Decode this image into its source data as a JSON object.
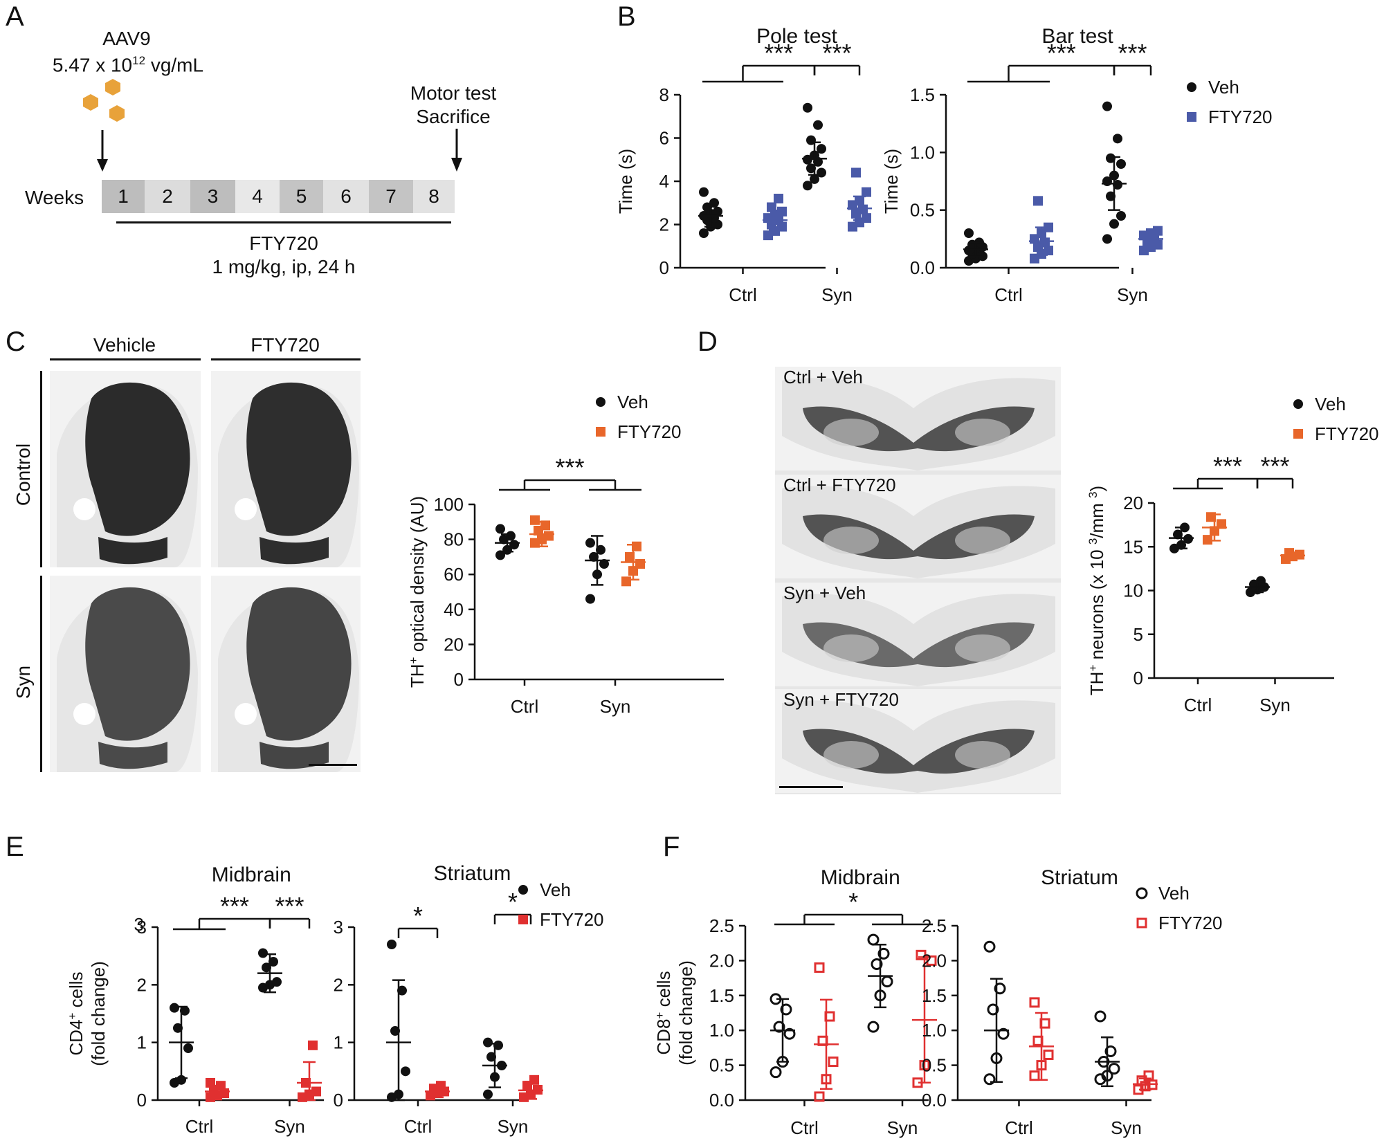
{
  "colors": {
    "veh": "#111111",
    "fty_blue": "#4a5aa8",
    "fty_orange": "#e8662a",
    "fty_red": "#e03030"
  },
  "letters": {
    "a": "A",
    "b": "B",
    "c": "C",
    "d": "D",
    "e": "E",
    "f": "F"
  },
  "panel_a": {
    "virus": "AAV9",
    "titer_base": "5.47 x 10",
    "titer_exp": "12",
    "titer_unit": " vg/mL",
    "endpoint_line1": "Motor test",
    "endpoint_line2": "Sacrifice",
    "weeks_label": "Weeks",
    "weeks": [
      "1",
      "2",
      "3",
      "4",
      "5",
      "6",
      "7",
      "8"
    ],
    "drug": "FTY720",
    "dose": "1 mg/kg, ip, 24 h"
  },
  "panel_c": {
    "col_headers": [
      "Vehicle",
      "FTY720"
    ],
    "row_labels": [
      "Control",
      "Syn"
    ]
  },
  "panel_d": {
    "image_labels": [
      "Ctrl + Veh",
      "Ctrl + FTY720",
      "Syn + Veh",
      "Syn + FTY720"
    ]
  },
  "chart_data": [
    {
      "id": "pole",
      "type": "scatter",
      "title": "Pole test",
      "ylabel": "Time (s)",
      "ylim": [
        0,
        8
      ],
      "yticks": [
        "0",
        "2",
        "4",
        "6",
        "8"
      ],
      "categories": [
        "Ctrl",
        "Syn"
      ],
      "markers": [
        "circle-filled",
        "square-filled"
      ],
      "series": [
        {
          "name": "Veh",
          "color": "#111111",
          "mean": [
            2.4,
            5.05
          ],
          "sd": [
            0.5,
            0.75
          ],
          "points": [
            [
              1.6,
              1.9,
              2.0,
              2.2,
              2.3,
              2.4,
              2.5,
              2.6,
              2.8,
              3.0,
              3.5
            ],
            [
              3.8,
              4.1,
              4.4,
              4.6,
              4.9,
              5.0,
              5.2,
              5.5,
              5.9,
              6.6,
              7.4
            ]
          ]
        },
        {
          "name": "FTY720",
          "color": "#4a5aa8",
          "mean": [
            2.2,
            2.75
          ],
          "sd": [
            0.45,
            0.55
          ],
          "points": [
            [
              1.5,
              1.7,
              1.9,
              2.0,
              2.2,
              2.3,
              2.4,
              2.6,
              2.8,
              3.2
            ],
            [
              1.9,
              2.1,
              2.3,
              2.5,
              2.7,
              2.9,
              3.1,
              3.5,
              4.4
            ]
          ]
        }
      ],
      "sig": [
        {
          "kind": "group",
          "label": "***"
        },
        {
          "kind": "pair",
          "label": "***"
        }
      ]
    },
    {
      "id": "bar",
      "type": "scatter",
      "title": "Bar test",
      "ylabel": "Time (s)",
      "ylim": [
        0,
        1.5
      ],
      "yticks": [
        "0.0",
        "0.5",
        "1.0",
        "1.5"
      ],
      "categories": [
        "Ctrl",
        "Syn"
      ],
      "markers": [
        "circle-filled",
        "square-filled"
      ],
      "series": [
        {
          "name": "Veh",
          "color": "#111111",
          "mean": [
            0.16,
            0.73
          ],
          "sd": [
            0.06,
            0.23
          ],
          "points": [
            [
              0.06,
              0.08,
              0.1,
              0.12,
              0.14,
              0.15,
              0.17,
              0.18,
              0.2,
              0.22,
              0.3
            ],
            [
              0.25,
              0.38,
              0.45,
              0.62,
              0.72,
              0.75,
              0.8,
              0.9,
              0.95,
              1.12,
              1.4
            ]
          ]
        },
        {
          "name": "FTY720",
          "color": "#4a5aa8",
          "mean": [
            0.23,
            0.25
          ],
          "sd": [
            0.12,
            0.05
          ],
          "points": [
            [
              0.08,
              0.12,
              0.15,
              0.18,
              0.22,
              0.25,
              0.3,
              0.35,
              0.58
            ],
            [
              0.15,
              0.18,
              0.2,
              0.22,
              0.25,
              0.28,
              0.3,
              0.32
            ]
          ]
        }
      ],
      "sig": [
        {
          "kind": "group",
          "label": "***"
        },
        {
          "kind": "pair",
          "label": "***"
        }
      ],
      "legend": {
        "position": "right",
        "entries": [
          {
            "label": "Veh",
            "color": "#111111",
            "marker": "circle-filled"
          },
          {
            "label": "FTY720",
            "color": "#4a5aa8",
            "marker": "square-filled"
          }
        ]
      }
    },
    {
      "id": "thod",
      "type": "scatter",
      "title": "",
      "ylabel_main": "TH",
      "ylabel_sup": "+",
      "ylabel_rest": " optical density (AU)",
      "ylim": [
        0,
        100
      ],
      "yticks": [
        "0",
        "20",
        "40",
        "60",
        "80",
        "100"
      ],
      "categories": [
        "Ctrl",
        "Syn"
      ],
      "markers": [
        "circle-filled",
        "square-filled"
      ],
      "series": [
        {
          "name": "Veh",
          "color": "#111111",
          "mean": [
            78,
            68
          ],
          "sd": [
            5,
            14
          ],
          "points": [
            [
              71,
              74,
              77,
              80,
              82,
              86
            ],
            [
              46,
              60,
              66,
              70,
              74,
              78
            ]
          ]
        },
        {
          "name": "FTY720",
          "color": "#e8662a",
          "mean": [
            83,
            67
          ],
          "sd": [
            7,
            10
          ],
          "points": [
            [
              78,
              80,
              82,
              85,
              88,
              91
            ],
            [
              56,
              62,
              66,
              70,
              76
            ]
          ]
        }
      ],
      "sig": [
        {
          "kind": "group",
          "label": "***"
        }
      ],
      "legend": {
        "position": "top",
        "entries": [
          {
            "label": "Veh",
            "color": "#111111",
            "marker": "circle-filled"
          },
          {
            "label": "FTY720",
            "color": "#e8662a",
            "marker": "square-filled"
          }
        ]
      }
    },
    {
      "id": "thn",
      "type": "scatter",
      "title": "",
      "ylabel_main": "TH",
      "ylabel_sup": "+",
      "ylabel_rest": " neurons (x 10 ",
      "ylabel_sup2": "3",
      "ylabel_end": "/mm ",
      "ylabel_sup3": "3",
      "ylabel_close": ")",
      "ylim": [
        0,
        20
      ],
      "yticks": [
        "0",
        "5",
        "10",
        "15",
        "20"
      ],
      "categories": [
        "Ctrl",
        "Syn"
      ],
      "markers": [
        "circle-filled",
        "square-filled"
      ],
      "series": [
        {
          "name": "Veh",
          "color": "#111111",
          "mean": [
            16,
            10.4
          ],
          "sd": [
            1.2,
            0.6
          ],
          "points": [
            [
              14.8,
              15.2,
              15.9,
              16.4,
              17.2
            ],
            [
              9.8,
              10.1,
              10.4,
              10.7,
              11.1
            ]
          ]
        },
        {
          "name": "FTY720",
          "color": "#e8662a",
          "mean": [
            17.2,
            14.0
          ],
          "sd": [
            1.5,
            0.3
          ],
          "points": [
            [
              15.8,
              16.8,
              17.6,
              18.4
            ],
            [
              13.6,
              13.9,
              14.1,
              14.3
            ]
          ]
        }
      ],
      "sig": [
        {
          "kind": "group",
          "label": "***"
        },
        {
          "kind": "pair",
          "label": "***"
        }
      ],
      "legend": {
        "position": "top-right",
        "entries": [
          {
            "label": "Veh",
            "color": "#111111",
            "marker": "circle-filled"
          },
          {
            "label": "FTY720",
            "color": "#e8662a",
            "marker": "square-filled"
          }
        ]
      }
    },
    {
      "id": "cd4mid",
      "type": "scatter",
      "title": "Midbrain",
      "ylabel_main": "CD4",
      "ylabel_sup": "+",
      "ylabel_rest": " cells",
      "ylabel2": "(fold change)",
      "ylim": [
        0,
        3
      ],
      "yticks": [
        "0",
        "1",
        "2",
        "3"
      ],
      "extra_top_tick": "3",
      "categories": [
        "Ctrl",
        "Syn"
      ],
      "markers": [
        "circle-filled",
        "square-filled"
      ],
      "series": [
        {
          "name": "Veh",
          "color": "#111111",
          "mean": [
            1.0,
            2.2
          ],
          "sd": [
            0.62,
            0.33
          ],
          "points": [
            [
              0.3,
              0.35,
              0.9,
              1.25,
              1.55,
              1.6
            ],
            [
              1.95,
              2.0,
              2.05,
              2.3,
              2.4,
              2.55
            ]
          ]
        },
        {
          "name": "FTY720",
          "color": "#e03030",
          "mean": [
            0.15,
            0.3
          ],
          "sd": [
            0.1,
            0.36
          ],
          "points": [
            [
              0.05,
              0.08,
              0.12,
              0.18,
              0.25,
              0.3
            ],
            [
              0.05,
              0.1,
              0.15,
              0.3,
              0.95
            ]
          ]
        }
      ],
      "sig": [
        {
          "kind": "group",
          "label": "***"
        },
        {
          "kind": "pair",
          "label": "***"
        }
      ]
    },
    {
      "id": "cd4str",
      "type": "scatter",
      "title": "Striatum",
      "ylim": [
        0,
        3
      ],
      "yticks": [
        "0",
        "1",
        "2",
        "3"
      ],
      "categories": [
        "Ctrl",
        "Syn"
      ],
      "markers": [
        "circle-filled",
        "square-filled"
      ],
      "series": [
        {
          "name": "Veh",
          "color": "#111111",
          "mean": [
            1.0,
            0.6
          ],
          "sd": [
            1.08,
            0.38
          ],
          "points": [
            [
              0.05,
              0.1,
              0.5,
              1.2,
              1.9,
              2.7
            ],
            [
              0.1,
              0.4,
              0.6,
              0.75,
              0.95,
              1.0
            ]
          ]
        },
        {
          "name": "FTY720",
          "color": "#e03030",
          "mean": [
            0.15,
            0.17
          ],
          "sd": [
            0.1,
            0.15
          ],
          "points": [
            [
              0.08,
              0.12,
              0.15,
              0.2,
              0.25
            ],
            [
              0.05,
              0.1,
              0.18,
              0.25,
              0.35
            ]
          ]
        }
      ],
      "sig": [
        {
          "kind": "pair-ctrl",
          "label": "*"
        },
        {
          "kind": "pair",
          "label": "*"
        }
      ],
      "legend": {
        "position": "right",
        "entries": [
          {
            "label": "Veh",
            "color": "#111111",
            "marker": "circle-filled"
          },
          {
            "label": "FTY720",
            "color": "#e03030",
            "marker": "square-filled"
          }
        ]
      }
    },
    {
      "id": "cd8mid",
      "type": "scatter",
      "title": "Midbrain",
      "ylabel_main": "CD8",
      "ylabel_sup": "+",
      "ylabel_rest": " cells",
      "ylabel2": "(fold change)",
      "ylim": [
        0,
        2.5
      ],
      "yticks": [
        "0.0",
        "0.5",
        "1.0",
        "1.5",
        "2.0",
        "2.5"
      ],
      "categories": [
        "Ctrl",
        "Syn"
      ],
      "markers": [
        "circle-open",
        "square-open"
      ],
      "series": [
        {
          "name": "Veh",
          "color": "#111111",
          "mean": [
            1.0,
            1.78
          ],
          "sd": [
            0.45,
            0.45
          ],
          "points": [
            [
              0.4,
              0.55,
              0.95,
              1.05,
              1.3,
              1.45
            ],
            [
              1.05,
              1.5,
              1.7,
              1.95,
              2.1,
              2.3
            ]
          ]
        },
        {
          "name": "FTY720",
          "color": "#e03030",
          "mean": [
            0.8,
            1.15
          ],
          "sd": [
            0.64,
            0.9
          ],
          "points": [
            [
              0.05,
              0.3,
              0.55,
              0.85,
              1.2,
              1.9
            ],
            [
              0.25,
              0.5,
              2.0,
              2.08
            ]
          ]
        }
      ],
      "sig": [
        {
          "kind": "group",
          "label": "*"
        }
      ]
    },
    {
      "id": "cd8str",
      "type": "scatter",
      "title": "Striatum",
      "ylim": [
        0,
        2.5
      ],
      "yticks": [
        "0.0",
        "0.5",
        "1.0",
        "1.5",
        "2.0",
        "2.5"
      ],
      "categories": [
        "Ctrl",
        "Syn"
      ],
      "markers": [
        "circle-open",
        "square-open"
      ],
      "series": [
        {
          "name": "Veh",
          "color": "#111111",
          "mean": [
            1.0,
            0.55
          ],
          "sd": [
            0.74,
            0.35
          ],
          "points": [
            [
              0.3,
              0.6,
              0.95,
              1.3,
              1.6,
              2.2
            ],
            [
              0.3,
              0.35,
              0.45,
              0.55,
              0.7,
              1.2
            ]
          ]
        },
        {
          "name": "FTY720",
          "color": "#e03030",
          "mean": [
            0.77,
            0.23
          ],
          "sd": [
            0.48,
            0.08
          ],
          "points": [
            [
              0.35,
              0.5,
              0.65,
              0.85,
              1.1,
              1.4
            ],
            [
              0.15,
              0.2,
              0.22,
              0.28,
              0.35
            ]
          ]
        }
      ],
      "sig": [],
      "legend": {
        "position": "top-right",
        "entries": [
          {
            "label": "Veh",
            "color": "#111111",
            "marker": "circle-open"
          },
          {
            "label": "FTY720",
            "color": "#e03030",
            "marker": "square-open"
          }
        ]
      }
    }
  ]
}
